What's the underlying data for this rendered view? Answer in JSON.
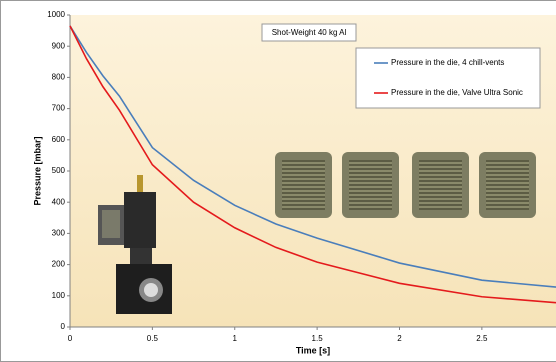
{
  "chart_data": {
    "type": "line",
    "title": "Shot-Weight 40 kg Al",
    "x_label": "Time [s]",
    "y_label": "Pressure [mbar]",
    "x": [
      0,
      0.1,
      0.2,
      0.3,
      0.5,
      0.75,
      1,
      1.25,
      1.5,
      2,
      2.5,
      2.95
    ],
    "series": [
      {
        "name": "Pressure in the die, 4 chill-vents",
        "color": "#4a7ebb",
        "values": [
          965,
          880,
          805,
          740,
          575,
          470,
          390,
          330,
          285,
          205,
          150,
          128
        ]
      },
      {
        "name": "Pressure in the die, Valve Ultra Sonic",
        "color": "#e41a1c",
        "values": [
          965,
          860,
          770,
          695,
          520,
          400,
          318,
          255,
          208,
          140,
          97,
          78
        ]
      }
    ],
    "xlim": [
      0,
      2.95
    ],
    "xticks": [
      0,
      0.5,
      1,
      1.5,
      2,
      2.5
    ],
    "ylim": [
      0,
      1000
    ],
    "yticks": [
      0,
      100,
      200,
      300,
      400,
      500,
      600,
      700,
      800,
      900,
      1000
    ],
    "grid": false,
    "legend": "top-right"
  }
}
